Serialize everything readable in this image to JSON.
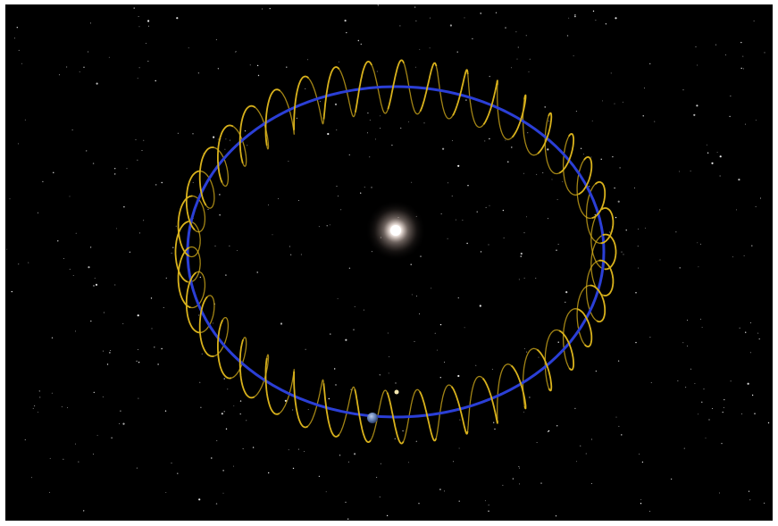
{
  "scene": {
    "background_color": "#000000",
    "frame_color": "#ffffff",
    "orbit_color": "#2b3fd6",
    "helix_color": "#d9b21c",
    "sun_color": "#ffffff",
    "planet_color": "#7c96c4",
    "moon_color": "#f2e6b0",
    "helix_loop_count": 40,
    "contains_text": false
  }
}
